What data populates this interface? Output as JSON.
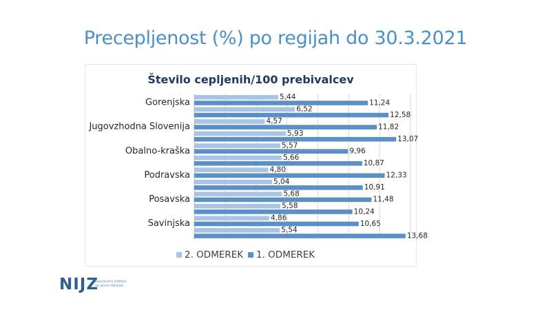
{
  "slide": {
    "title": "Precepljenost (%) po regijah do 30.3.2021"
  },
  "logo": {
    "name": "NIJZ",
    "line1": "Nacionalni inštitut",
    "line2": "za javno zdravje"
  },
  "colors": {
    "series_2": "#a9c4e4",
    "series_1": "#5b8fc7",
    "title": "#4a90c8",
    "chart_title": "#1f3864"
  },
  "chart_data": {
    "type": "bar",
    "orientation": "horizontal",
    "title": "Število cepljenih/100 prebivalcev",
    "xlim": [
      0,
      14
    ],
    "grid": true,
    "legend_position": "bottom",
    "categories": [
      "Gorenjska",
      "",
      "Jugovzhodna Slovenija",
      "",
      "Obalno-kraška",
      "",
      "Podravska",
      "",
      "Posavska",
      "",
      "Savinjska",
      ""
    ],
    "series": [
      {
        "name": "2. ODMEREK",
        "values": [
          5.44,
          6.52,
          4.57,
          5.93,
          5.57,
          5.66,
          4.8,
          5.04,
          5.68,
          5.58,
          4.86,
          5.54
        ]
      },
      {
        "name": "1. ODMEREK",
        "values": [
          11.24,
          12.58,
          11.82,
          13.07,
          9.96,
          10.87,
          12.33,
          10.91,
          11.48,
          10.24,
          10.65,
          13.68
        ]
      }
    ]
  }
}
